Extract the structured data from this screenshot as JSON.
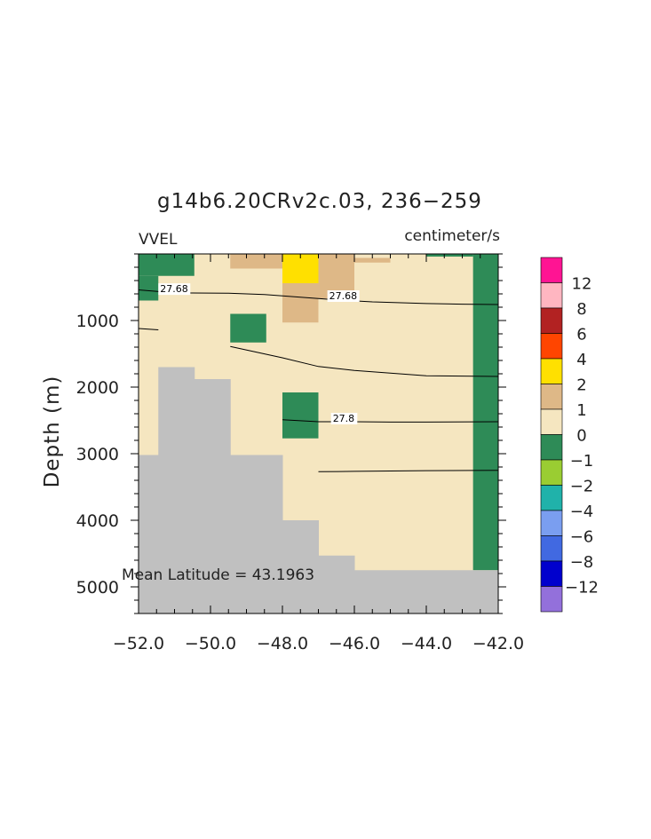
{
  "chart_data": {
    "type": "heatmap",
    "title": "g14b6.20CRv2c.03, 236−259",
    "variable_label": "VVEL",
    "units_label": "centimeter/s",
    "ylabel": "Depth (m)",
    "annotation": "Mean Latitude = 43.1963",
    "xlim": [
      -52.0,
      -42.0
    ],
    "ylim": [
      5400,
      0
    ],
    "x_ticks": [
      -52,
      -50,
      -48,
      -46,
      -44,
      -42
    ],
    "x_tick_labels": [
      "−52.0",
      "−50.0",
      "−48.0",
      "−46.0",
      "−44.0",
      "−42.0"
    ],
    "y_ticks": [
      1000,
      2000,
      3000,
      4000,
      5000
    ],
    "y_tick_labels": [
      "1000",
      "2000",
      "3000",
      "4000",
      "5000"
    ],
    "background_fill": "1 to 2",
    "land_color": "#c0c0c0",
    "land_profile": [
      {
        "x0": -52.0,
        "x1": -51.45,
        "bottom_depth": 3020
      },
      {
        "x0": -51.45,
        "x1": -50.45,
        "bottom_depth": 1700
      },
      {
        "x0": -50.45,
        "x1": -49.45,
        "bottom_depth": 1880
      },
      {
        "x0": -49.45,
        "x1": -48.0,
        "bottom_depth": 3020
      },
      {
        "x0": -48.0,
        "x1": -47.0,
        "bottom_depth": 4000
      },
      {
        "x0": -47.0,
        "x1": -46.0,
        "bottom_depth": 4530
      },
      {
        "x0": -46.0,
        "x1": -42.7,
        "bottom_depth": 4750
      },
      {
        "x0": -42.7,
        "x1": -42.0,
        "bottom_depth": 4750
      }
    ],
    "cells": [
      {
        "x0": -52.0,
        "x1": -50.45,
        "d0": 0,
        "d1": 330,
        "bin": "0 to 1"
      },
      {
        "x0": -52.0,
        "x1": -51.45,
        "d0": 330,
        "d1": 700,
        "bin": "0 to 1"
      },
      {
        "x0": -49.45,
        "x1": -48.0,
        "d0": 0,
        "d1": 220,
        "bin": "2 to 4"
      },
      {
        "x0": -48.0,
        "x1": -47.0,
        "d0": 0,
        "d1": 440,
        "bin": "4 to 6"
      },
      {
        "x0": -47.0,
        "x1": -46.0,
        "d0": 0,
        "d1": 130,
        "bin": "4 to 6"
      },
      {
        "x0": -47.0,
        "x1": -46.0,
        "d0": 0,
        "d1": 670,
        "bin": "2 to 4"
      },
      {
        "x0": -48.0,
        "x1": -47.0,
        "d0": 440,
        "d1": 1030,
        "bin": "2 to 4"
      },
      {
        "x0": -46.0,
        "x1": -45.0,
        "d0": 60,
        "d1": 130,
        "bin": "2 to 4"
      },
      {
        "x0": -49.45,
        "x1": -48.45,
        "d0": 900,
        "d1": 1330,
        "bin": "0 to 1"
      },
      {
        "x0": -48.0,
        "x1": -47.0,
        "d0": 2080,
        "d1": 2770,
        "bin": "0 to 1"
      },
      {
        "x0": -42.7,
        "x1": -42.0,
        "d0": 0,
        "d1": 4750,
        "bin": "0 to 1"
      },
      {
        "x0": -44.0,
        "x1": -42.7,
        "d0": 0,
        "d1": 40,
        "bin": "0 to 1"
      }
    ],
    "contours": [
      {
        "label": "27.68",
        "label_at": [
          -51.4,
          575
        ],
        "points": [
          [
            -52.0,
            540
          ],
          [
            -51.0,
            585
          ],
          [
            -49.5,
            590
          ],
          [
            -48.5,
            610
          ],
          [
            -47.5,
            650
          ],
          [
            -46.5,
            690
          ],
          [
            -45.5,
            720
          ],
          [
            -44.0,
            745
          ],
          [
            -43.0,
            755
          ],
          [
            -42.0,
            760
          ]
        ]
      },
      {
        "label": "27.68",
        "label_at": [
          -46.7,
          680
        ],
        "points": []
      },
      {
        "label": "",
        "points": [
          [
            -52.0,
            1120
          ],
          [
            -51.45,
            1140
          ]
        ]
      },
      {
        "label": "",
        "points": [
          [
            -49.45,
            1390
          ],
          [
            -48.0,
            1560
          ],
          [
            -47.0,
            1690
          ],
          [
            -46.0,
            1750
          ],
          [
            -45.0,
            1790
          ],
          [
            -44.0,
            1830
          ],
          [
            -42.0,
            1840
          ]
        ]
      },
      {
        "label": "27.8",
        "label_at": [
          -46.6,
          2520
        ],
        "points": [
          [
            -48.0,
            2490
          ],
          [
            -47.0,
            2520
          ],
          [
            -46.0,
            2520
          ],
          [
            -45.0,
            2525
          ],
          [
            -44.0,
            2525
          ],
          [
            -42.0,
            2520
          ]
        ]
      },
      {
        "label": "",
        "points": [
          [
            -47.0,
            3270
          ],
          [
            -46.0,
            3265
          ],
          [
            -45.0,
            3260
          ],
          [
            -44.0,
            3255
          ],
          [
            -42.0,
            3250
          ]
        ]
      }
    ],
    "colorbar": {
      "bins": [
        {
          "label": "",
          "color": "#ff1493"
        },
        {
          "label": "12",
          "color": "#ffb6c1"
        },
        {
          "label": "8",
          "color": "#b22222"
        },
        {
          "label": "6",
          "color": "#ff4500"
        },
        {
          "label": "4",
          "color": "#ffe000"
        },
        {
          "label": "2",
          "color": "#deb887"
        },
        {
          "label": "1",
          "color": "#f5e6c0"
        },
        {
          "label": "0",
          "color": "#2e8b57"
        },
        {
          "label": "−1",
          "color": "#9acd32"
        },
        {
          "label": "−2",
          "color": "#20b2aa"
        },
        {
          "label": "−4",
          "color": "#7a9ef0"
        },
        {
          "label": "−6",
          "color": "#4169e1"
        },
        {
          "label": "−8",
          "color": "#0000cd"
        },
        {
          "label": "−12",
          "color": "#9370db"
        }
      ]
    },
    "bin_colors": {
      "0 to 1": "#2e8b57",
      "1 to 2": "#f5e6c0",
      "2 to 4": "#deb887",
      "4 to 6": "#ffe000"
    }
  }
}
